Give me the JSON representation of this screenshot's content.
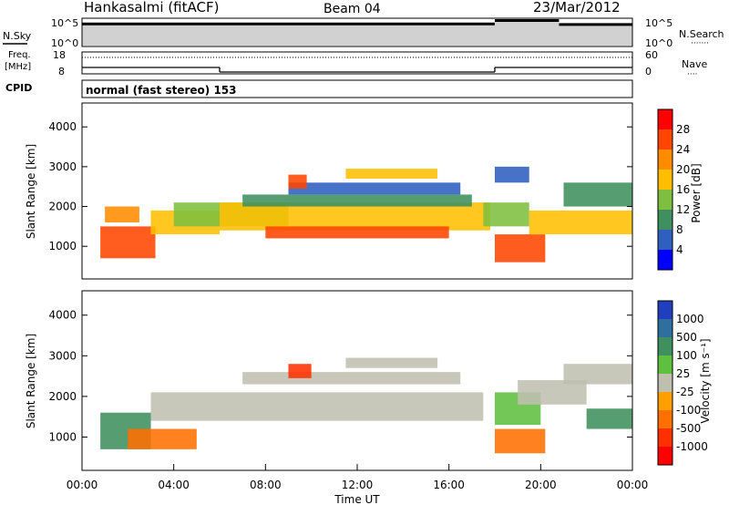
{
  "header": {
    "station": "Hankasalmi (fitACF)",
    "beam": "Beam 04",
    "date": "23/Mar/2012"
  },
  "panel_labels": {
    "nsky": "N.Sky",
    "freq_line1": "Freq.",
    "freq_line2": "[MHz]",
    "cpid": "CPID",
    "nsearch": "N.Search",
    "nave": "Nave",
    "nsearch_mark": "·······",
    "nave_mark": "····"
  },
  "cpid_text": "normal (fast stereo) 153",
  "chart_data": [
    {
      "type": "line",
      "name": "noise",
      "left_ticks": [
        "10^5",
        "10^0"
      ],
      "right_ticks": [
        "10^5",
        "10^0"
      ],
      "ylim": [
        0,
        5
      ],
      "xlim": [
        0,
        24
      ],
      "segments": [
        {
          "x0": 0,
          "x1": 18,
          "level": 4.0
        },
        {
          "x0": 18,
          "x1": 20.8,
          "level": 4.6
        },
        {
          "x0": 20.8,
          "x1": 24,
          "level": 3.9
        }
      ]
    },
    {
      "type": "line",
      "name": "frequency / nave",
      "left_ticks": [
        "18",
        "8"
      ],
      "right_ticks": [
        "60",
        "0"
      ],
      "ylim": [
        8,
        18
      ],
      "xlim": [
        0,
        24
      ],
      "nave_segments": [
        {
          "x0": 0,
          "x1": 6,
          "value": 11
        },
        {
          "x0": 6,
          "x1": 18,
          "value": 0
        },
        {
          "x0": 18,
          "x1": 24,
          "value": 11
        }
      ],
      "freq_level": 15.5
    },
    {
      "type": "heatmap",
      "name": "power",
      "ylabel": "Slant Range [km]",
      "yticks": [
        1000,
        2000,
        3000,
        4000
      ],
      "ylim": [
        180,
        4600
      ],
      "xlim": [
        0,
        24
      ],
      "colorbar_label": "Power [dB]",
      "colorbar_ticks": [
        "28",
        "24",
        "20",
        "16",
        "12",
        "8",
        "4"
      ],
      "colorbar_colors": [
        "#ff0000",
        "#ff4500",
        "#ff8c00",
        "#ffbf00",
        "#7fbf3f",
        "#3f8f5f",
        "#2f5fbf",
        "#0000ff"
      ],
      "bands": [
        {
          "x0": 0.8,
          "x1": 3.2,
          "y0": 700,
          "y1": 1500,
          "value": 26
        },
        {
          "x0": 1.0,
          "x1": 2.5,
          "y0": 1600,
          "y1": 2000,
          "value": 22
        },
        {
          "x0": 3.0,
          "x1": 6.0,
          "y0": 1300,
          "y1": 1900,
          "value": 18
        },
        {
          "x0": 4.0,
          "x1": 9.0,
          "y0": 1500,
          "y1": 2100,
          "value": 14
        },
        {
          "x0": 6.0,
          "x1": 17.8,
          "y0": 1400,
          "y1": 2100,
          "value": 16
        },
        {
          "x0": 8.0,
          "x1": 16.0,
          "y0": 1200,
          "y1": 1500,
          "value": 26
        },
        {
          "x0": 7.0,
          "x1": 17.0,
          "y0": 2000,
          "y1": 2300,
          "value": 10
        },
        {
          "x0": 9.0,
          "x1": 16.5,
          "y0": 2300,
          "y1": 2600,
          "value": 6
        },
        {
          "x0": 11.5,
          "x1": 15.5,
          "y0": 2700,
          "y1": 2950,
          "value": 18
        },
        {
          "x0": 9.0,
          "x1": 9.8,
          "y0": 2450,
          "y1": 2800,
          "value": 24
        },
        {
          "x0": 18.0,
          "x1": 20.2,
          "y0": 600,
          "y1": 1300,
          "value": 26
        },
        {
          "x0": 17.5,
          "x1": 19.5,
          "y0": 1500,
          "y1": 2100,
          "value": 14
        },
        {
          "x0": 19.5,
          "x1": 24,
          "y0": 1300,
          "y1": 1900,
          "value": 18
        },
        {
          "x0": 21.0,
          "x1": 24,
          "y0": 2000,
          "y1": 2600,
          "value": 8
        },
        {
          "x0": 18.0,
          "x1": 19.5,
          "y0": 2600,
          "y1": 3000,
          "value": 6
        }
      ]
    },
    {
      "type": "heatmap",
      "name": "velocity",
      "ylabel": "Slant Range [km]",
      "yticks": [
        1000,
        2000,
        3000,
        4000
      ],
      "ylim": [
        180,
        4600
      ],
      "xlim": [
        0,
        24
      ],
      "xticks": [
        "00:00",
        "04:00",
        "08:00",
        "12:00",
        "16:00",
        "20:00",
        "00:00"
      ],
      "xlabel": "Time UT",
      "colorbar_label": "Velocity [m s⁻¹]",
      "colorbar_ticks": [
        "1000",
        "500",
        "100",
        "25",
        "-25",
        "-100",
        "-500",
        "-1000"
      ],
      "colorbar_colors": [
        "#1f3fbf",
        "#2f6f9f",
        "#3f8f5f",
        "#5fbf3f",
        "#bfbfb0",
        "#ffa000",
        "#ff7000",
        "#ff3000",
        "#ff0000"
      ],
      "bands": [
        {
          "x0": 0.8,
          "x1": 3.0,
          "y0": 700,
          "y1": 1600,
          "value": 300
        },
        {
          "x0": 2.0,
          "x1": 5.0,
          "y0": 700,
          "y1": 1200,
          "value": -150
        },
        {
          "x0": 3.0,
          "x1": 17.5,
          "y0": 1400,
          "y1": 2100,
          "value": 0
        },
        {
          "x0": 7.0,
          "x1": 16.5,
          "y0": 2300,
          "y1": 2600,
          "value": 0
        },
        {
          "x0": 11.5,
          "x1": 15.5,
          "y0": 2700,
          "y1": 2950,
          "value": 0
        },
        {
          "x0": 9.0,
          "x1": 10.0,
          "y0": 2450,
          "y1": 2800,
          "value": -700
        },
        {
          "x0": 18.0,
          "x1": 20.2,
          "y0": 600,
          "y1": 1200,
          "value": -200
        },
        {
          "x0": 18.0,
          "x1": 20.0,
          "y0": 1300,
          "y1": 2100,
          "value": 80
        },
        {
          "x0": 19.0,
          "x1": 22.0,
          "y0": 1800,
          "y1": 2400,
          "value": 0
        },
        {
          "x0": 21.0,
          "x1": 24,
          "y0": 2300,
          "y1": 2800,
          "value": 0
        },
        {
          "x0": 22.0,
          "x1": 24,
          "y0": 1200,
          "y1": 1700,
          "value": 200
        }
      ]
    }
  ]
}
